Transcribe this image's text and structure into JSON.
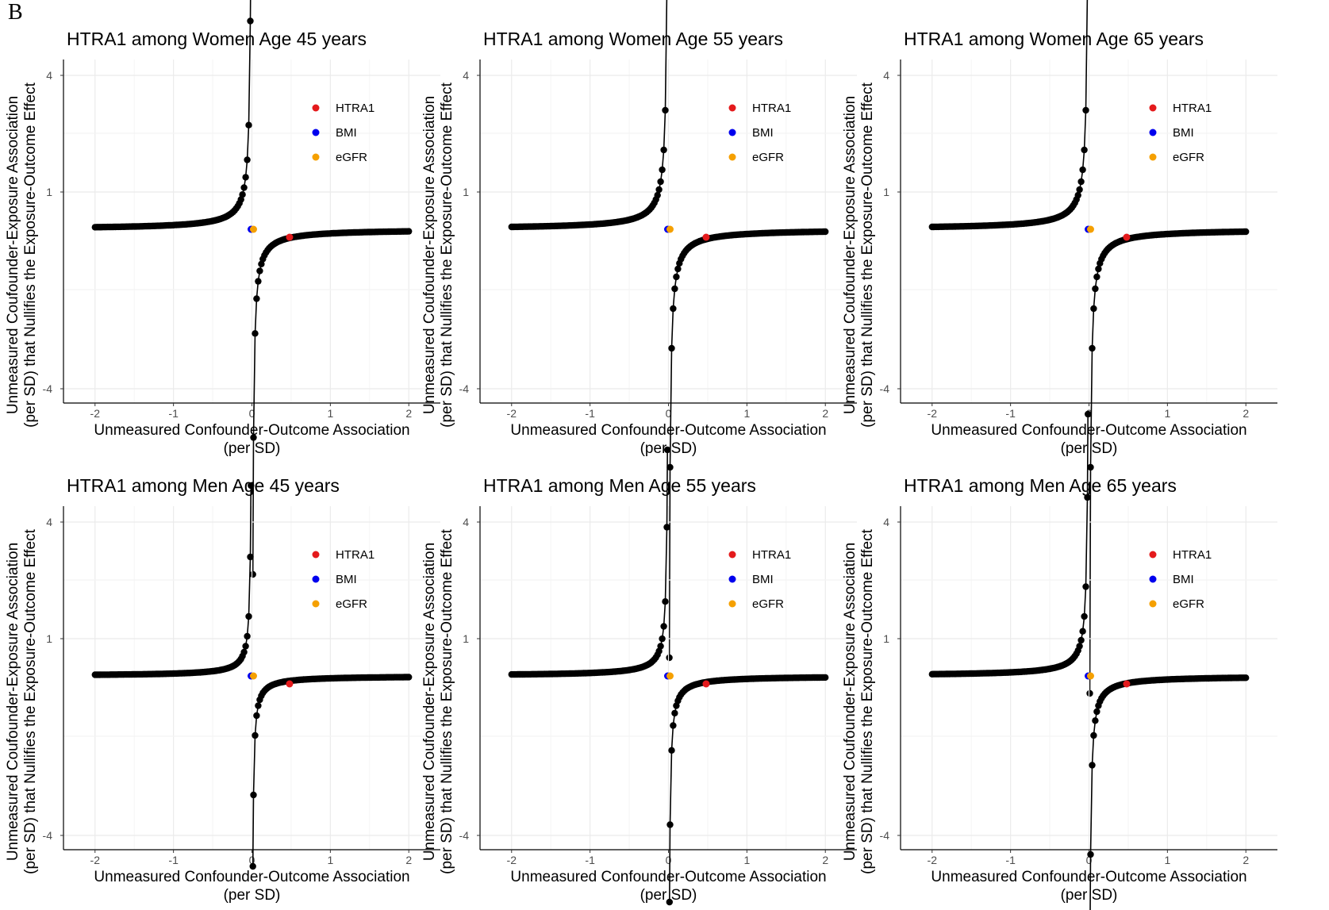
{
  "figure_label": "B",
  "chart_data": [
    {
      "type": "scatter",
      "title": "HTRA1 among Women Age 45 years",
      "xlabel": [
        "Unmeasured Confounder-Outcome Association",
        "(per SD)"
      ],
      "ylabel": [
        "Unmeasured Coufounder-Exposure Association",
        "(per SD) that Nullifies the Exposure-Outcome Effect"
      ],
      "xlim": [
        -2.2,
        2.2
      ],
      "xticks": [
        "-2",
        "-1",
        "0",
        "1",
        "2"
      ],
      "yticks": [
        "4",
        "1",
        "-4"
      ],
      "grid": true,
      "legend_position": "top-right",
      "legend": [
        {
          "name": "HTRA1",
          "color": "#e41a1c"
        },
        {
          "name": "BMI",
          "color": "#0000ee"
        },
        {
          "name": "eGFR",
          "color": "#f5a000"
        }
      ],
      "curve_k": 0.035,
      "upper_y": 2.1,
      "lower_y": -2.9,
      "points": {
        "HTRA1": [
          0.48,
          -0.1
        ],
        "BMI": [
          -0.01,
          0.0
        ],
        "eGFR": [
          0.02,
          0.0
        ]
      }
    },
    {
      "type": "scatter",
      "title": "HTRA1 among Women Age 55 years",
      "xlabel": [
        "Unmeasured Confounder-Outcome Association",
        "(per SD)"
      ],
      "ylabel": [
        "Unmeasured Coufounder-Exposure Association",
        "(per SD) that Nullifies the Exposure-Outcome Effect"
      ],
      "xlim": [
        -2.2,
        2.2
      ],
      "xticks": [
        "-2",
        "-1",
        "0",
        "1",
        "2"
      ],
      "yticks": [
        "4",
        "1",
        "-4"
      ],
      "grid": true,
      "legend_position": "top-right",
      "legend": [
        {
          "name": "HTRA1",
          "color": "#e41a1c"
        },
        {
          "name": "BMI",
          "color": "#0000ee"
        },
        {
          "name": "eGFR",
          "color": "#f5a000"
        }
      ],
      "curve_k": 0.04,
      "upper_y": 2.7,
      "lower_y": -3.6,
      "points": {
        "HTRA1": [
          0.48,
          -0.1
        ],
        "BMI": [
          -0.01,
          0.0
        ],
        "eGFR": [
          0.02,
          0.0
        ]
      }
    },
    {
      "type": "scatter",
      "title": "HTRA1 among Women Age 65 years",
      "xlabel": [
        "Unmeasured Confounder-Outcome Association",
        "(per SD)"
      ],
      "ylabel": [
        "Unmeasured Coufounder-Exposure Association",
        "(per SD) that Nullifies the Exposure-Outcome Effect"
      ],
      "xlim": [
        -2.2,
        2.2
      ],
      "xticks": [
        "-2",
        "-1",
        "0",
        "1",
        "2"
      ],
      "yticks": [
        "4",
        "1",
        "-4"
      ],
      "grid": true,
      "legend_position": "top-right",
      "legend": [
        {
          "name": "HTRA1",
          "color": "#e41a1c"
        },
        {
          "name": "BMI",
          "color": "#0000ee"
        },
        {
          "name": "eGFR",
          "color": "#f5a000"
        }
      ],
      "curve_k": 0.04,
      "upper_y": 3.6,
      "lower_y": -3.9,
      "points": {
        "HTRA1": [
          0.48,
          -0.1
        ],
        "BMI": [
          -0.01,
          0.0
        ],
        "eGFR": [
          0.02,
          0.0
        ]
      }
    },
    {
      "type": "scatter",
      "title": "HTRA1 among Men Age 45 years",
      "xlabel": [
        "Unmeasured Confounder-Outcome Association",
        "(per SD)"
      ],
      "ylabel": [
        "Unmeasured Coufounder-Exposure Association",
        "(per SD) that Nullifies the Exposure-Outcome Effect"
      ],
      "xlim": [
        -2.2,
        2.2
      ],
      "xticks": [
        "-2",
        "-1",
        "0",
        "1",
        "2"
      ],
      "yticks": [
        "4",
        "1",
        "-4"
      ],
      "grid": true,
      "legend_position": "top-right",
      "legend": [
        {
          "name": "HTRA1",
          "color": "#e41a1c"
        },
        {
          "name": "BMI",
          "color": "#0000ee"
        },
        {
          "name": "eGFR",
          "color": "#f5a000"
        }
      ],
      "curve_k": 0.02,
      "upper_y": 1.6,
      "lower_y": -1.6,
      "points": {
        "HTRA1": [
          0.48,
          -0.1
        ],
        "BMI": [
          -0.01,
          0.0
        ],
        "eGFR": [
          0.02,
          0.0
        ]
      }
    },
    {
      "type": "scatter",
      "title": "HTRA1 among Men Age 55 years",
      "xlabel": [
        "Unmeasured Confounder-Outcome Association",
        "(per SD)"
      ],
      "ylabel": [
        "Unmeasured Coufounder-Exposure Association",
        "(per SD) that Nullifies the Exposure-Outcome Effect"
      ],
      "xlim": [
        -2.2,
        2.2
      ],
      "xticks": [
        "-2",
        "-1",
        "0",
        "1",
        "2"
      ],
      "yticks": [
        "4",
        "1",
        "-4"
      ],
      "grid": true,
      "legend_position": "top-right",
      "legend": [
        {
          "name": "HTRA1",
          "color": "#e41a1c"
        },
        {
          "name": "BMI",
          "color": "#0000ee"
        },
        {
          "name": "eGFR",
          "color": "#f5a000"
        }
      ],
      "curve_k": 0.025,
      "upper_y": 1.9,
      "lower_y": -1.9,
      "points": {
        "HTRA1": [
          0.48,
          -0.1
        ],
        "BMI": [
          -0.01,
          0.0
        ],
        "eGFR": [
          0.02,
          0.0
        ]
      }
    },
    {
      "type": "scatter",
      "title": "HTRA1 among Men Age 65 years",
      "xlabel": [
        "Unmeasured Confounder-Outcome Association",
        "(per SD)"
      ],
      "ylabel": [
        "Unmeasured Coufounder-Exposure Association",
        "(per SD) that Nullifies the Exposure-Outcome Effect"
      ],
      "xlim": [
        -2.2,
        2.2
      ],
      "xticks": [
        "-2",
        "-1",
        "0",
        "1",
        "2"
      ],
      "yticks": [
        "4",
        "1",
        "-4"
      ],
      "grid": true,
      "legend_position": "top-right",
      "legend": [
        {
          "name": "HTRA1",
          "color": "#e41a1c"
        },
        {
          "name": "BMI",
          "color": "#0000ee"
        },
        {
          "name": "eGFR",
          "color": "#f5a000"
        }
      ],
      "curve_k": 0.03,
      "upper_y": 2.2,
      "lower_y": -2.2,
      "points": {
        "HTRA1": [
          0.48,
          -0.1
        ],
        "BMI": [
          -0.01,
          0.0
        ],
        "eGFR": [
          0.02,
          0.0
        ]
      }
    }
  ]
}
